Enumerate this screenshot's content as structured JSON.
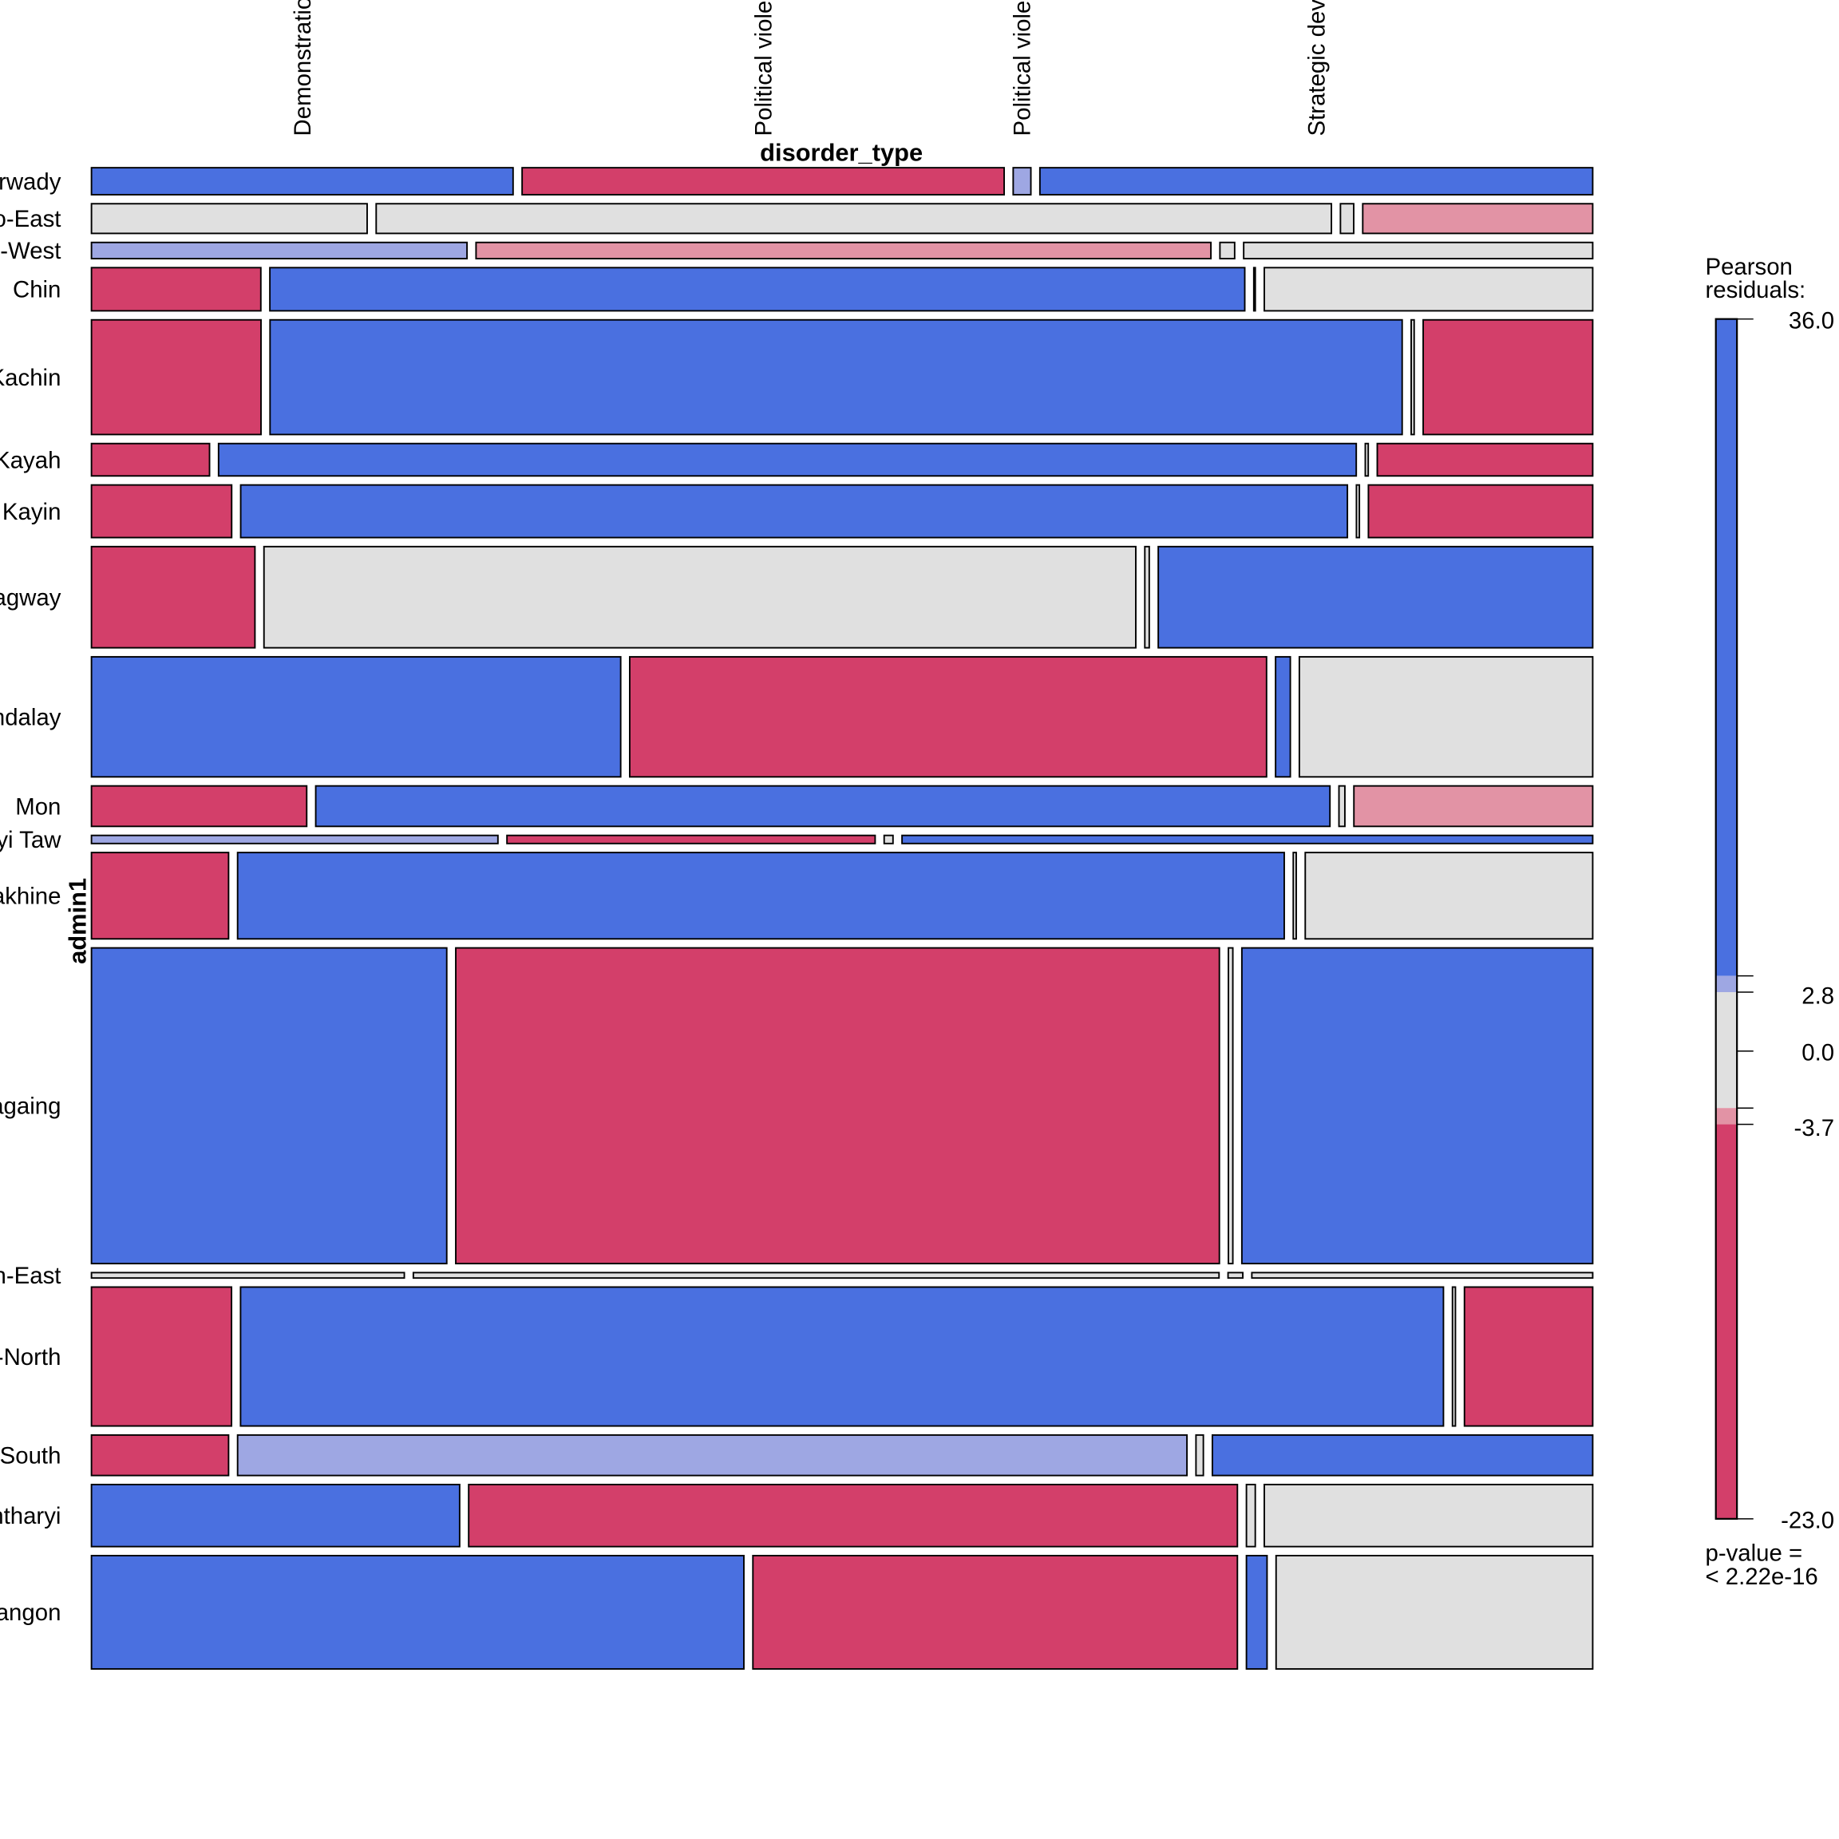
{
  "chart_data": {
    "type": "mosaic",
    "xlabel": "disorder_type",
    "ylabel": "admin1",
    "columns": [
      "Demonstrations",
      "Political violence",
      "Political violence; Demonstrations",
      "Strategic developments"
    ],
    "rows": [
      {
        "name": "Ayeyarwady",
        "share_pct": 2.0,
        "cells_pct": [
          28.6,
          32.7,
          1.2,
          37.5
        ],
        "residual_class": [
          "pos_high",
          "neg_high",
          "pos_mid",
          "pos_high"
        ]
      },
      {
        "name": "Bago-East",
        "share_pct": 2.2,
        "cells_pct": [
          18.7,
          64.8,
          0.9,
          15.6
        ],
        "residual_class": [
          "neutral",
          "neutral",
          "neutral",
          "neg_mid"
        ]
      },
      {
        "name": "Bago-West",
        "share_pct": 1.2,
        "cells_pct": [
          25.5,
          49.9,
          1.0,
          23.7
        ],
        "residual_class": [
          "pos_mid",
          "neg_mid",
          "neutral",
          "neutral"
        ]
      },
      {
        "name": "Chin",
        "share_pct": 3.2,
        "cells_pct": [
          11.5,
          66.2,
          0.1,
          22.3
        ],
        "residual_class": [
          "neg_high",
          "pos_high",
          "neutral",
          "neutral"
        ]
      },
      {
        "name": "Kachin",
        "share_pct": 8.5,
        "cells_pct": [
          11.5,
          76.8,
          0.2,
          11.5
        ],
        "residual_class": [
          "neg_high",
          "pos_high",
          "neutral",
          "neg_high"
        ]
      },
      {
        "name": "Kayah",
        "share_pct": 2.4,
        "cells_pct": [
          8.0,
          77.1,
          0.2,
          14.6
        ],
        "residual_class": [
          "neg_high",
          "pos_high",
          "neutral",
          "neg_high"
        ]
      },
      {
        "name": "Kayin",
        "share_pct": 3.9,
        "cells_pct": [
          9.5,
          75.0,
          0.2,
          15.2
        ],
        "residual_class": [
          "neg_high",
          "pos_high",
          "neutral",
          "neg_high"
        ]
      },
      {
        "name": "Magway",
        "share_pct": 7.5,
        "cells_pct": [
          11.1,
          59.2,
          0.3,
          29.5
        ],
        "residual_class": [
          "neg_high",
          "neutral",
          "neutral",
          "pos_high"
        ]
      },
      {
        "name": "Mandalay",
        "share_pct": 8.9,
        "cells_pct": [
          35.9,
          43.2,
          1.0,
          19.9
        ],
        "residual_class": [
          "pos_high",
          "neg_high",
          "pos_high",
          "neutral"
        ]
      },
      {
        "name": "Mon",
        "share_pct": 3.0,
        "cells_pct": [
          14.6,
          68.8,
          0.4,
          16.2
        ],
        "residual_class": [
          "neg_high",
          "pos_high",
          "neutral",
          "neg_mid"
        ]
      },
      {
        "name": "Nay Pyi Taw",
        "share_pct": 0.6,
        "cells_pct": [
          27.6,
          25.0,
          0.6,
          46.9
        ],
        "residual_class": [
          "pos_mid",
          "neg_high",
          "neutral",
          "pos_high"
        ]
      },
      {
        "name": "Rakhine",
        "share_pct": 6.4,
        "cells_pct": [
          9.3,
          71.0,
          0.2,
          19.5
        ],
        "residual_class": [
          "neg_high",
          "pos_high",
          "neutral",
          "neutral"
        ]
      },
      {
        "name": "Sagaing",
        "share_pct": 23.4,
        "cells_pct": [
          24.1,
          51.8,
          0.3,
          23.8
        ],
        "residual_class": [
          "pos_high",
          "neg_high",
          "neutral",
          "pos_high"
        ]
      },
      {
        "name": "Shan-East",
        "share_pct": 0.4,
        "cells_pct": [
          21.2,
          54.6,
          1.0,
          23.1
        ],
        "residual_class": [
          "neutral",
          "neutral",
          "neutral",
          "neutral"
        ]
      },
      {
        "name": "Shan-North",
        "share_pct": 10.3,
        "cells_pct": [
          9.5,
          81.6,
          0.2,
          8.7
        ],
        "residual_class": [
          "neg_high",
          "pos_high",
          "neutral",
          "neg_high"
        ]
      },
      {
        "name": "Shan-South",
        "share_pct": 3.0,
        "cells_pct": [
          9.3,
          64.4,
          0.5,
          25.8
        ],
        "residual_class": [
          "neg_high",
          "pos_mid",
          "neutral",
          "pos_high"
        ]
      },
      {
        "name": "Tanintharyi",
        "share_pct": 4.6,
        "cells_pct": [
          25.0,
          52.2,
          0.6,
          22.3
        ],
        "residual_class": [
          "pos_high",
          "neg_high",
          "neutral",
          "neutral"
        ]
      },
      {
        "name": "Yangon",
        "share_pct": 8.4,
        "cells_pct": [
          44.3,
          32.9,
          1.4,
          21.5
        ],
        "residual_class": [
          "pos_high",
          "neg_high",
          "pos_high",
          "neutral"
        ]
      }
    ],
    "colors": {
      "pos_high": "#4A70E0",
      "pos_mid": "#9EA7E3",
      "neutral": "#E0E0E0",
      "neg_mid": "#E293A5",
      "neg_high": "#D33F6A"
    },
    "legend": {
      "title_line1": "Pearson",
      "title_line2": "residuals:",
      "range": [
        -23.0,
        36.0
      ],
      "ticks": [
        "36.0",
        "2.8",
        "0.0",
        "-3.7",
        "-23.0"
      ],
      "tick_values": [
        36.0,
        2.8,
        0.0,
        -3.7,
        -23.0
      ],
      "pvalue_line1": "p-value =",
      "pvalue_line2": "< 2.22e-16",
      "placement": "right"
    }
  }
}
